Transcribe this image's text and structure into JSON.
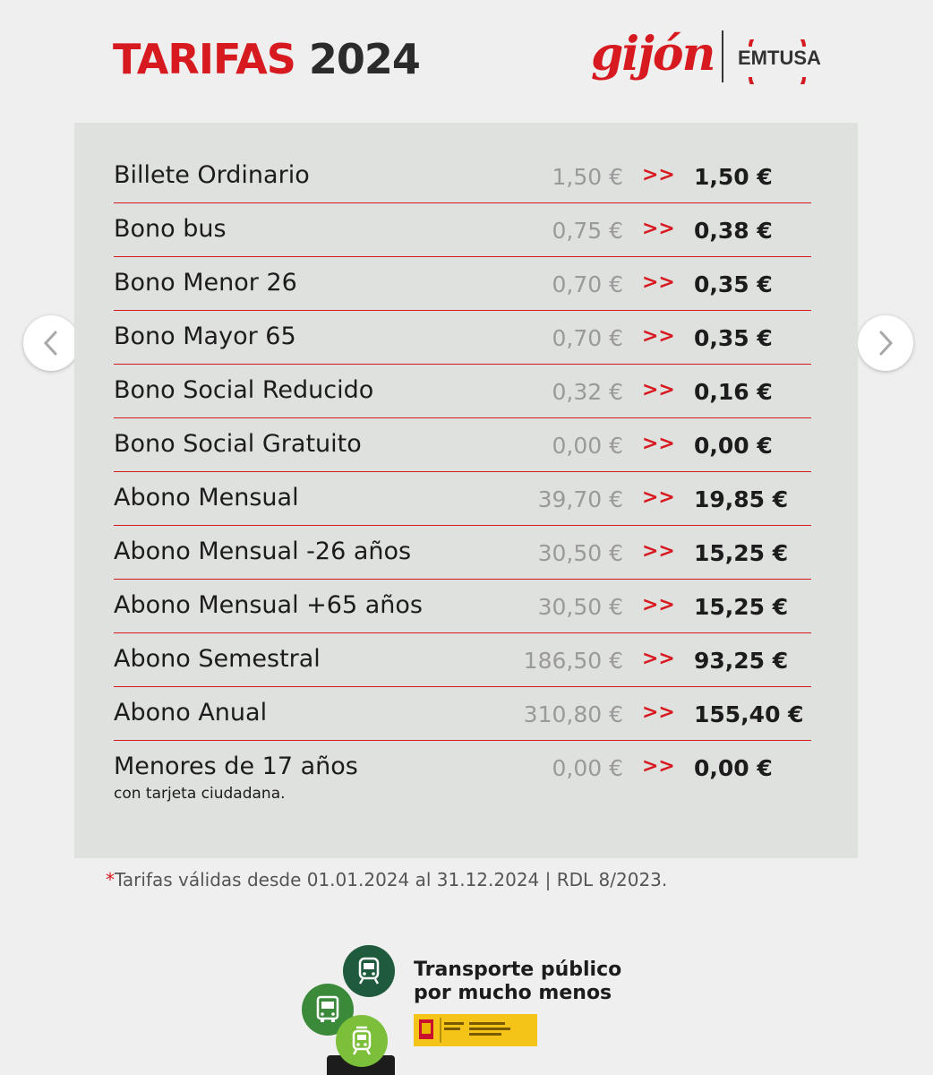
{
  "header": {
    "title_part1": "TARIFAS",
    "title_part2": "2024",
    "logo_city": "gijón",
    "logo_company": "EMTUSA"
  },
  "colors": {
    "accent": "#d71920",
    "panel_bg": "#dfe1de",
    "page_bg": "#eeefee",
    "old_price": "#9a9a9a"
  },
  "fares": [
    {
      "name": "Billete Ordinario",
      "old_price": "1,50 €",
      "arrow": ">>",
      "new_price": "1,50 €"
    },
    {
      "name": "Bono bus",
      "old_price": "0,75 €",
      "arrow": ">>",
      "new_price": "0,38 €"
    },
    {
      "name": "Bono Menor 26",
      "old_price": "0,70 €",
      "arrow": ">>",
      "new_price": "0,35 €"
    },
    {
      "name": "Bono Mayor 65",
      "old_price": "0,70 €",
      "arrow": ">>",
      "new_price": "0,35 €"
    },
    {
      "name": "Bono Social Reducido",
      "old_price": "0,32 €",
      "arrow": ">>",
      "new_price": "0,16 €"
    },
    {
      "name": "Bono Social Gratuito",
      "old_price": "0,00 €",
      "arrow": ">>",
      "new_price": "0,00 €"
    },
    {
      "name": "Abono Mensual",
      "old_price": "39,70 €",
      "arrow": ">>",
      "new_price": "19,85 €"
    },
    {
      "name": "Abono Mensual -26 años",
      "old_price": "30,50 €",
      "arrow": ">>",
      "new_price": "15,25 €"
    },
    {
      "name": "Abono Mensual +65 años",
      "old_price": "30,50 €",
      "arrow": ">>",
      "new_price": "15,25 €"
    },
    {
      "name": "Abono Semestral",
      "old_price": "186,50 €",
      "arrow": ">>",
      "new_price": "93,25 €"
    },
    {
      "name": "Abono Anual",
      "old_price": "310,80 €",
      "arrow": ">>",
      "new_price": "155,40 €"
    },
    {
      "name": "Menores de 17 años",
      "subtitle": "con tarjeta ciudadana.",
      "old_price": "0,00 €",
      "arrow": ">>",
      "new_price": "0,00 €"
    }
  ],
  "footnote": {
    "star": "*",
    "text": "Tarifas válidas desde 01.01.2024 al 31.12.2024  |  RDL 8/2023."
  },
  "footer": {
    "tagline_line1": "Transporte público",
    "tagline_line2": "por mucho menos",
    "gov_badge_icon": "spain-government-crest-icon",
    "transport_icons": [
      "train-icon",
      "bus-icon",
      "tram-icon"
    ]
  },
  "carousel": {
    "prev_icon": "chevron-left-icon",
    "next_icon": "chevron-right-icon"
  }
}
